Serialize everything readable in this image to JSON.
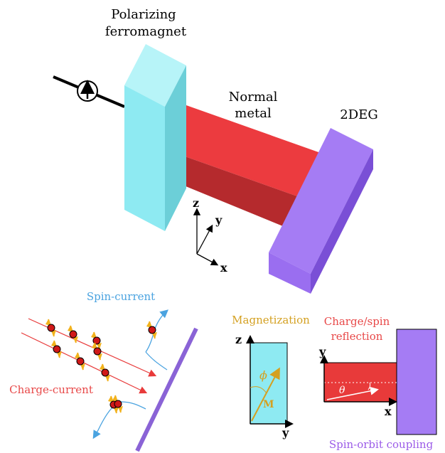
{
  "labels": {
    "polarizing_line1": "Polarizing",
    "polarizing_line2": "ferromagnet",
    "normal_line1": "Normal",
    "normal_line2": "metal",
    "twodeg": "2DEG",
    "axis_z": "z",
    "axis_y": "y",
    "axis_x": "x",
    "spin_current": "Spin-current",
    "charge_current": "Charge-current",
    "magnetization": "Magnetization",
    "mag_z": "z",
    "mag_y": "y",
    "phi": "ϕ",
    "M": "M",
    "charge_spin_line1": "Charge/spin",
    "charge_spin_line2": "reflection",
    "refl_y": "y",
    "refl_x": "x",
    "theta": "θ",
    "spin_orbit": "Spin-orbit coupling"
  },
  "colors": {
    "ferromagnet": "#8eeaf2",
    "normal_metal": "#ec3b3f",
    "twodeg": "#a57cf4",
    "spin_current": "#4aa3e0",
    "charge_current": "#ea4a4a",
    "magnetization": "#d4a020",
    "spin_orbit": "#9b5be8"
  },
  "icons": [
    "spin-up-circle-icon",
    "electron-dot-icon",
    "spin-arrow-icon"
  ]
}
